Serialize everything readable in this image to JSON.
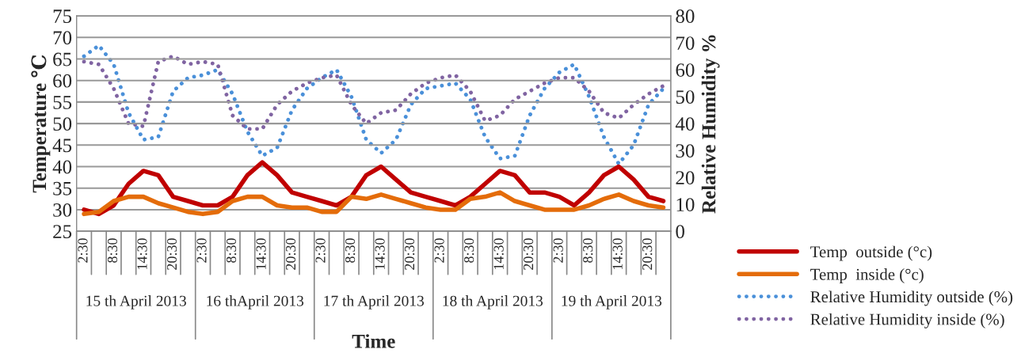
{
  "chart_data": {
    "type": "line",
    "categories": [
      "2:30",
      null,
      "8:30",
      null,
      "14:30",
      null,
      "20:30",
      null,
      "2:30",
      null,
      "8:30",
      null,
      "14:30",
      null,
      "20:30",
      null,
      "2:30",
      null,
      "8:30",
      null,
      "14:30",
      null,
      "20:30",
      null,
      "2:30",
      null,
      "8:30",
      null,
      "14:30",
      null,
      "20:30",
      null,
      "2:30",
      null,
      "8:30",
      null,
      "14:30",
      null,
      "20:30",
      null
    ],
    "annotations": [
      "15 th April 2013",
      "16 thApril 2013",
      "17 th April 2013",
      "18 th April 2013",
      "19 th April 2013"
    ],
    "xlabel": "Time",
    "ylabel": "Temperature ℃",
    "y2label": "Relative Humidity %",
    "ylim": [
      25,
      75
    ],
    "yticks": [
      25,
      30,
      35,
      40,
      45,
      50,
      55,
      60,
      65,
      70,
      75
    ],
    "y2lim": [
      0,
      80
    ],
    "y2ticks": [
      0,
      10,
      20,
      30,
      40,
      50,
      60,
      70,
      80
    ],
    "grid": "y",
    "legend": "bottom right",
    "marker": "none",
    "series": [
      {
        "name": "Temp  outside (°c)",
        "color": "#c00000",
        "line_style": "solid",
        "values": [
          30,
          29,
          31,
          36,
          39,
          38,
          33,
          32,
          31,
          31,
          33,
          38,
          41,
          38,
          34,
          33,
          32,
          31,
          33,
          38,
          40,
          37,
          34,
          33,
          32,
          31,
          33,
          36,
          39,
          38,
          34,
          34,
          33,
          31,
          34,
          38,
          40,
          37,
          33,
          32
        ]
      },
      {
        "name": "Temp  inside (°c)",
        "color": "#e46c0a",
        "line_style": "solid",
        "values": [
          29,
          29.5,
          32,
          33,
          33,
          31.5,
          30.5,
          29.5,
          29,
          29.5,
          32,
          33,
          33,
          31,
          30.5,
          30.5,
          29.5,
          29.5,
          33,
          32.5,
          33.5,
          32.5,
          31.5,
          30.5,
          30,
          30,
          32.5,
          33,
          34,
          32,
          31,
          30,
          30,
          30,
          31,
          32.5,
          33.5,
          32,
          31,
          30.5
        ]
      },
      {
        "name": "Relative Humidity outside (%)",
        "color": "#4a90d9",
        "line_style": "dotted",
        "axis": "y2",
        "values": [
          65,
          69,
          62,
          44,
          34,
          35,
          52,
          57,
          58,
          60,
          51,
          37,
          28,
          31,
          45,
          53,
          57,
          60,
          50,
          34,
          29,
          34,
          47,
          53,
          54,
          55,
          49,
          35,
          27,
          28,
          43,
          53,
          59,
          62,
          50,
          35,
          25,
          32,
          47,
          53
        ]
      },
      {
        "name": "Relative Humidity inside (%)",
        "color": "#8064a2",
        "line_style": "dotted",
        "axis": "y2",
        "values": [
          63,
          62,
          53,
          40,
          39,
          63,
          65,
          62,
          63,
          62,
          43,
          38,
          38,
          47,
          52,
          55,
          57,
          58,
          47,
          40,
          44,
          45,
          51,
          55,
          57,
          58,
          52,
          41,
          43,
          49,
          52,
          55,
          57,
          57,
          52,
          44,
          42,
          47,
          51,
          54
        ]
      }
    ]
  }
}
